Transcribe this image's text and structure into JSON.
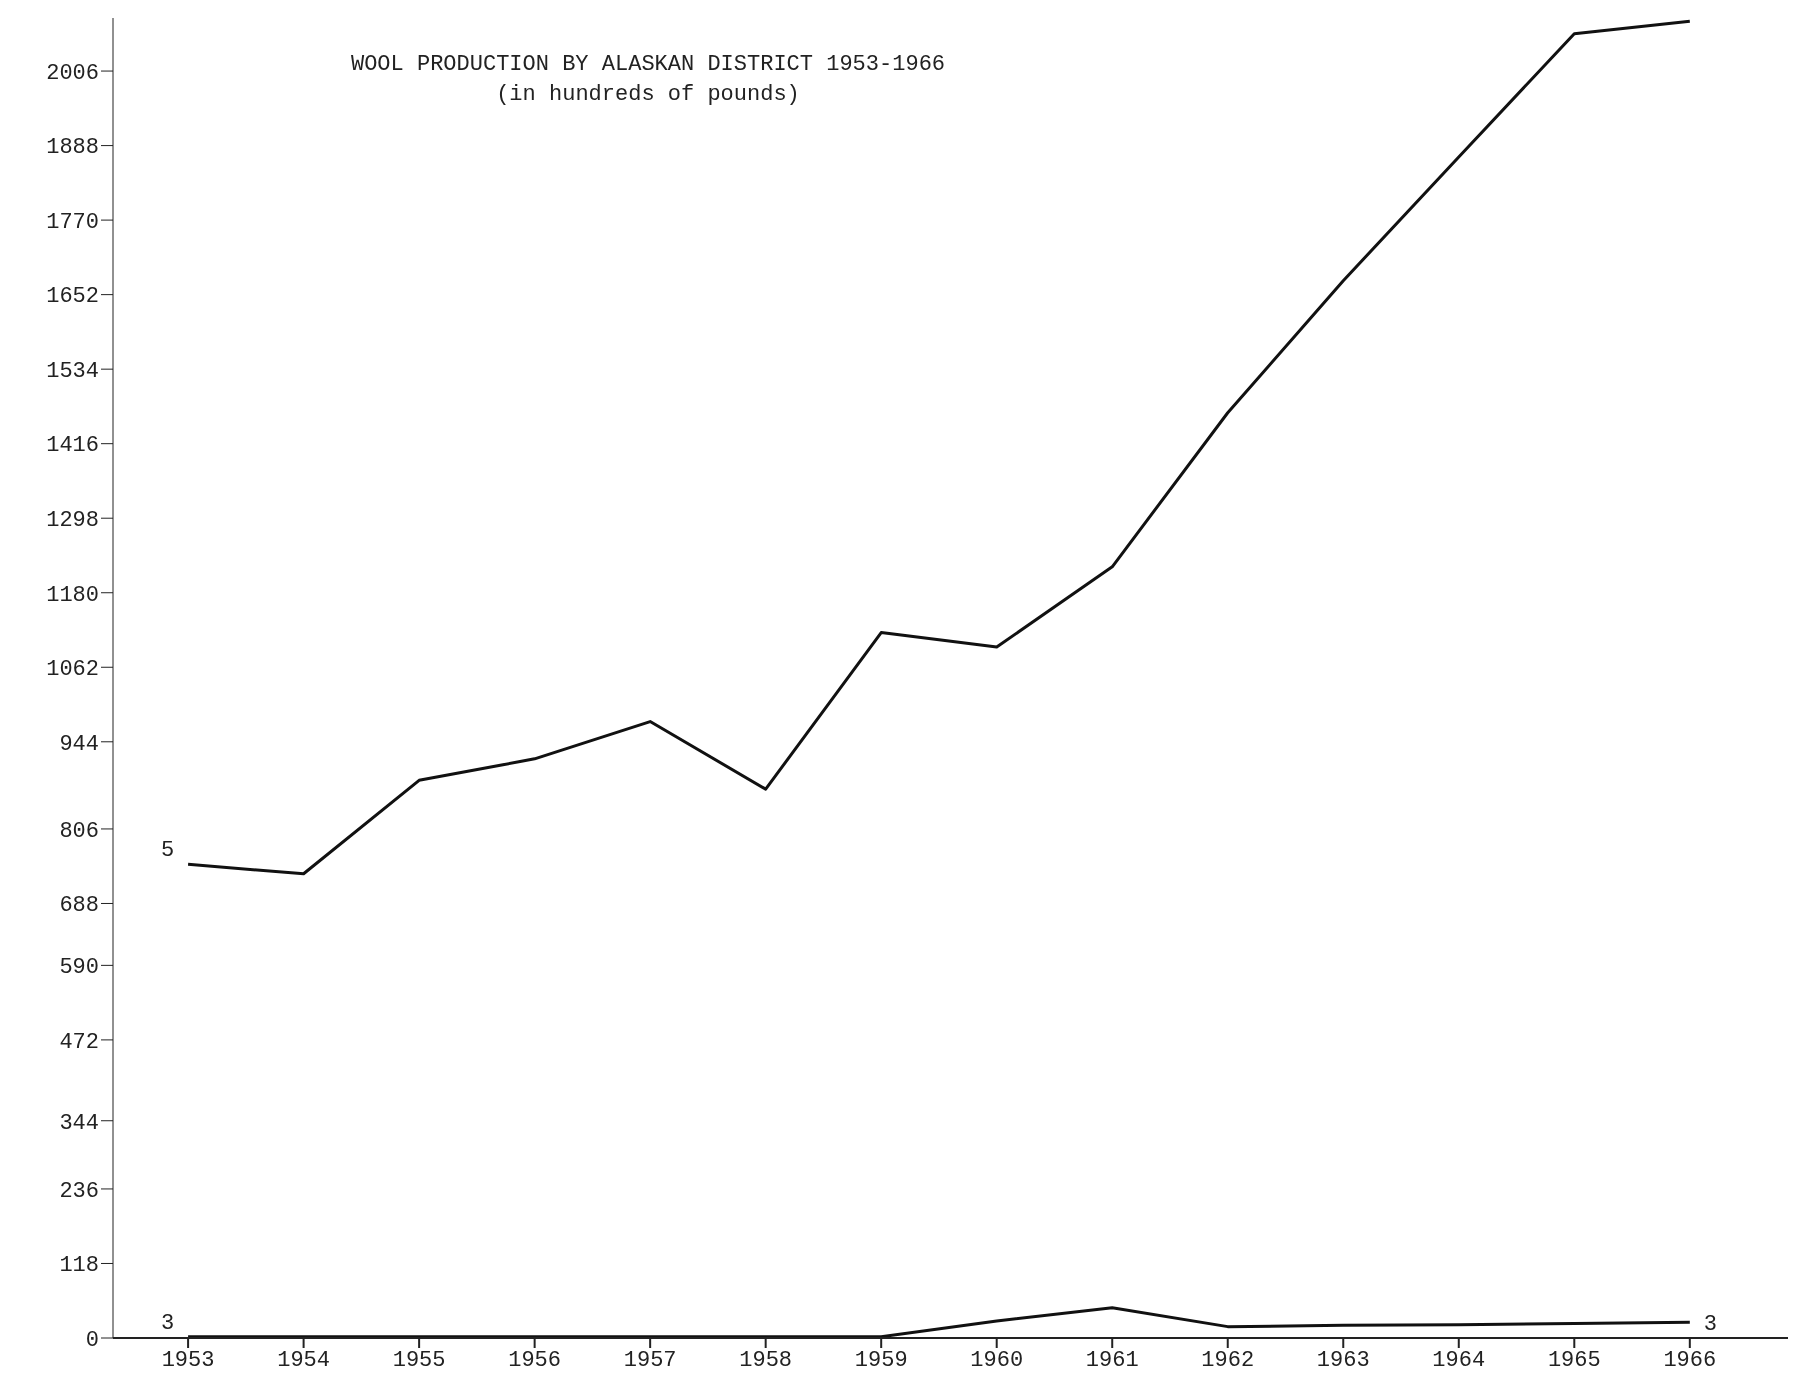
{
  "chart_data": {
    "type": "line",
    "title": "WOOL PRODUCTION BY ALASKAN DISTRICT 1953-1966",
    "subtitle": "(in hundreds of pounds)",
    "x": [
      1953,
      1954,
      1955,
      1956,
      1957,
      1958,
      1959,
      1960,
      1961,
      1962,
      1963,
      1964,
      1965,
      1966
    ],
    "series": [
      {
        "name": "5",
        "color": "#111111",
        "values": [
          750,
          735,
          883,
          917,
          976,
          869,
          1117,
          1094,
          1221,
          1465,
          1674,
          1870,
          2065,
          2085
        ]
      },
      {
        "name": "3",
        "color": "#111111",
        "values": [
          2,
          2,
          2,
          2,
          2,
          2,
          2,
          27,
          48,
          18,
          20,
          21,
          23,
          25
        ]
      }
    ],
    "annotations": [
      {
        "text": "3",
        "x": 1966,
        "y": 25
      }
    ],
    "xlim": [
      1952.35,
      1966.85
    ],
    "xticks": [
      1953,
      1954,
      1955,
      1956,
      1957,
      1958,
      1959,
      1960,
      1961,
      1962,
      1963,
      1964,
      1965,
      1966
    ],
    "ylim": [
      0,
      2090
    ],
    "yticks": [
      0,
      118,
      236,
      344,
      472,
      590,
      688,
      806,
      944,
      1062,
      1180,
      1298,
      1416,
      1534,
      1652,
      1770,
      1888,
      2006
    ],
    "grid": false,
    "legend": false,
    "marker": "none",
    "line_style": "solid"
  }
}
